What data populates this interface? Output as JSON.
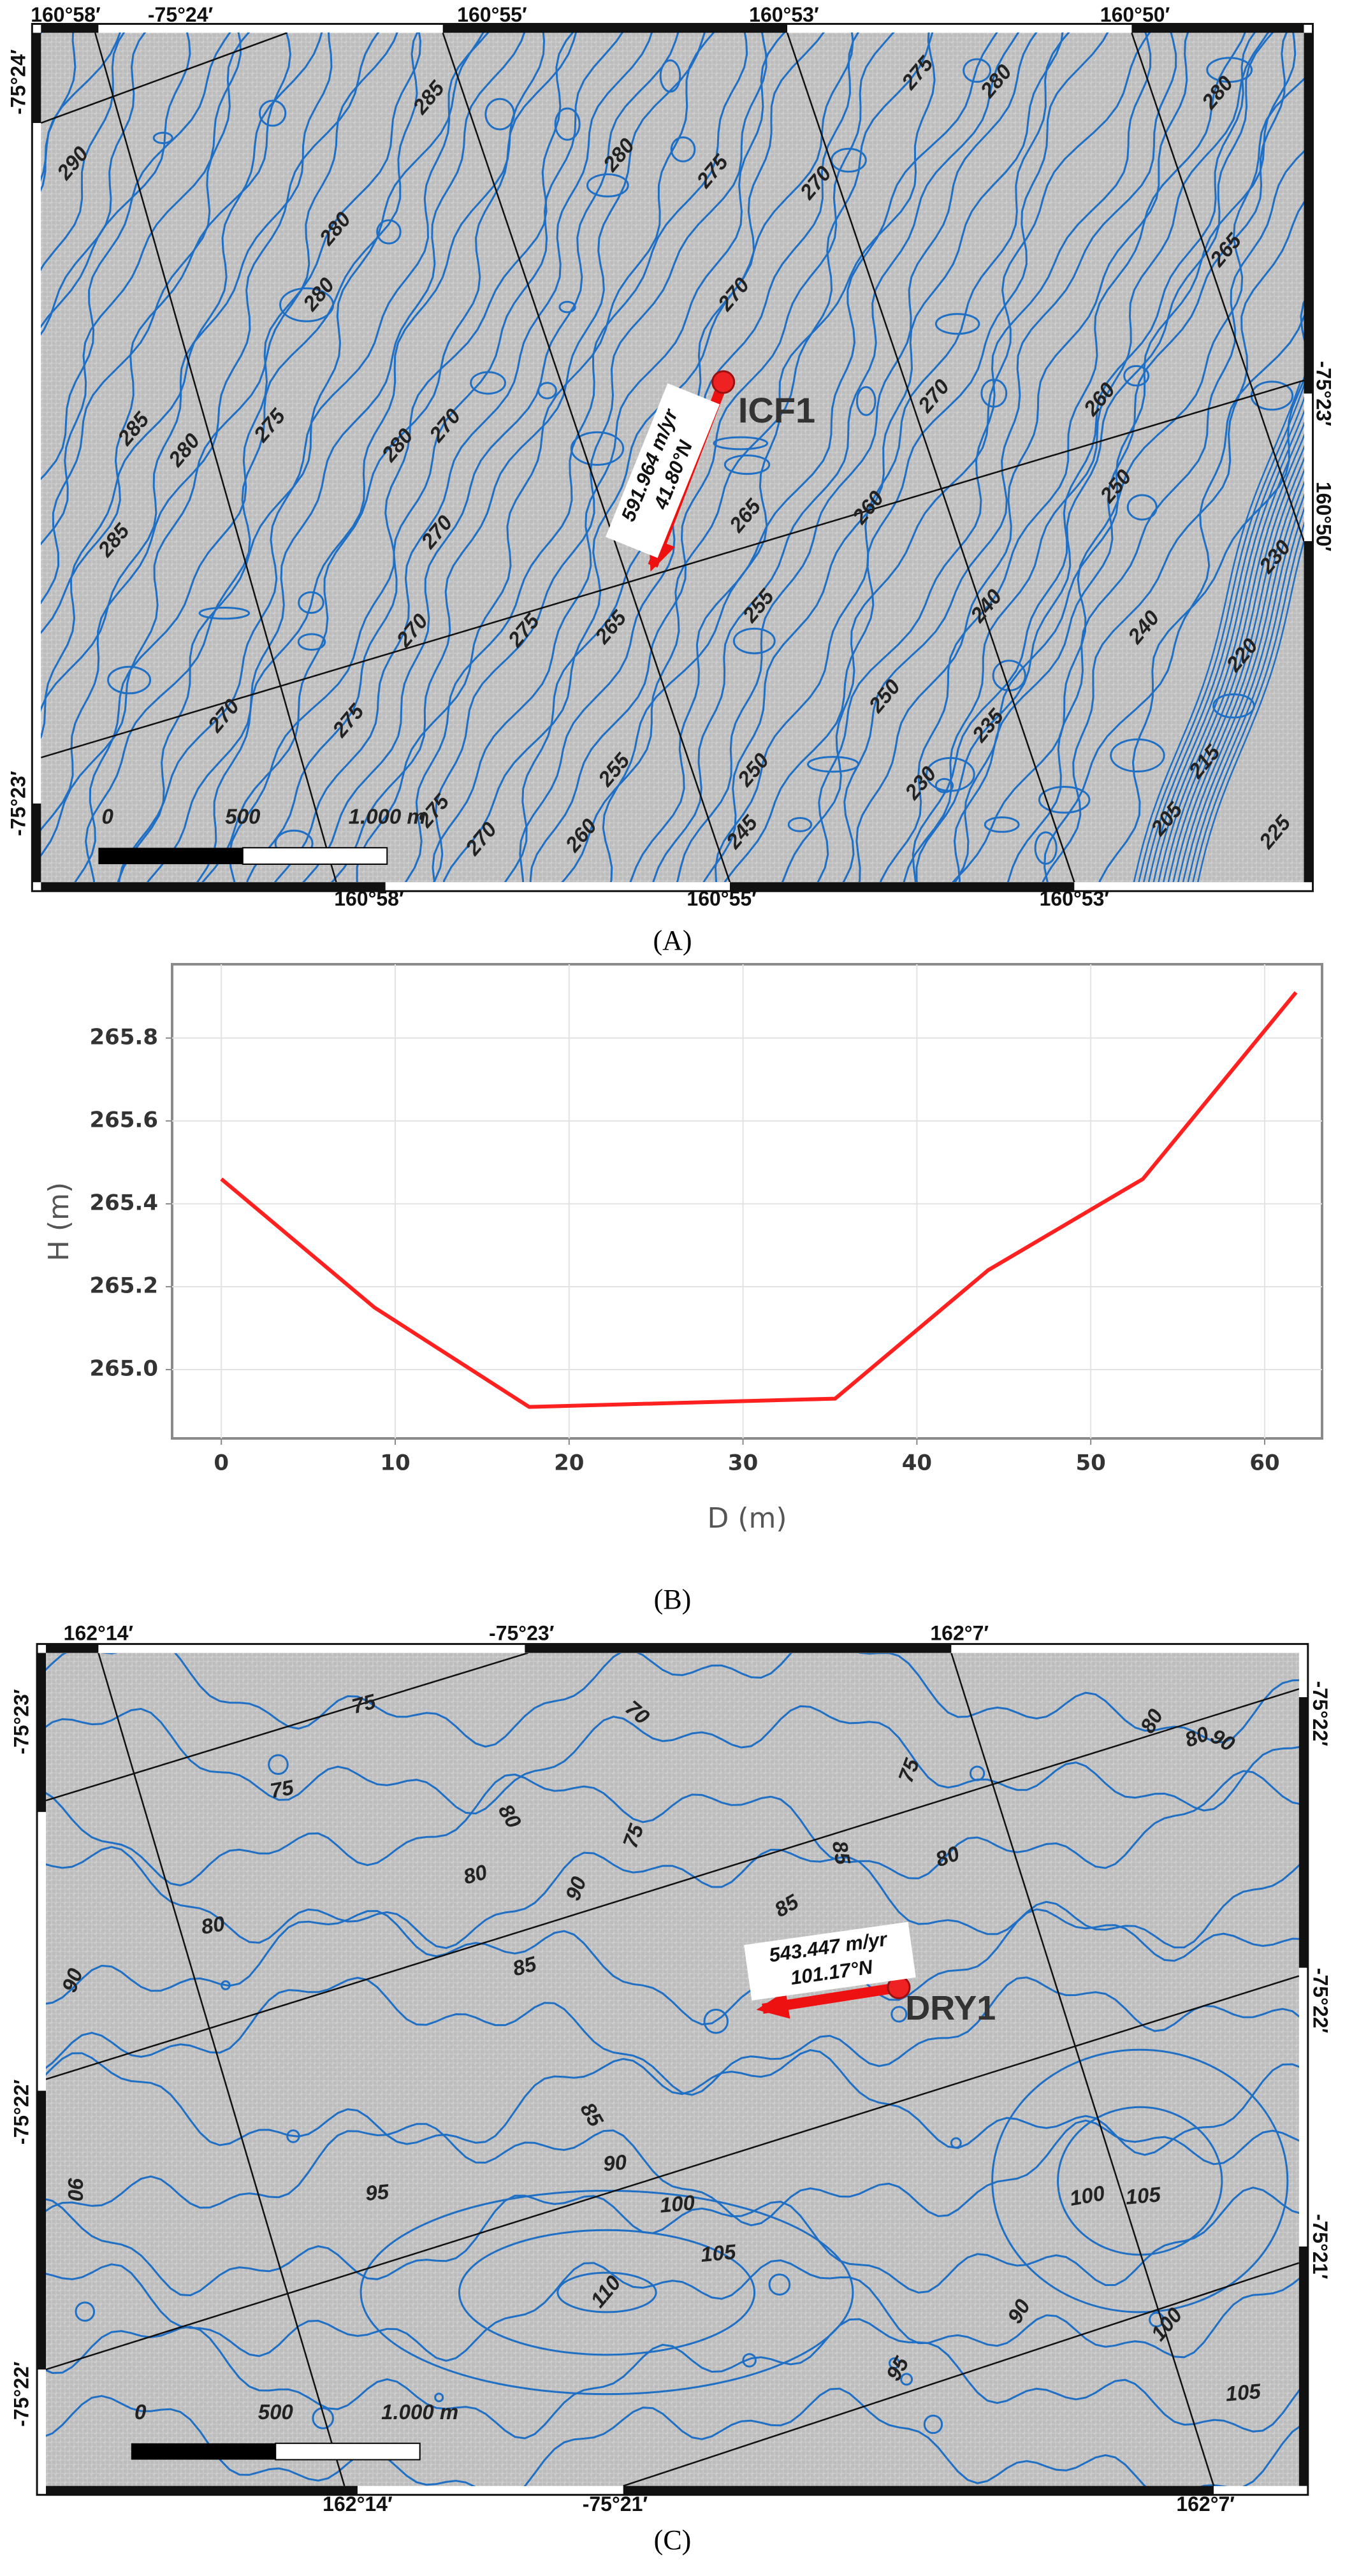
{
  "map_a": {
    "top_labels": [
      "160°58′",
      "-75°24′",
      "160°55′",
      "160°53′",
      "160°50′"
    ],
    "left_labels": [
      "-75°24′",
      "-75°23′"
    ],
    "right_labels": [
      "-75°23′",
      "160°50′"
    ],
    "bottom_labels": [
      "160°58′",
      "160°55′",
      "160°53′"
    ],
    "station": "ICF1",
    "velocity": "591.964 m/yr",
    "direction": "41.80°N",
    "scale_labels": [
      "0",
      "500",
      "1.000 m"
    ],
    "contour_labels": [
      "290",
      "280",
      "280",
      "285",
      "280",
      "285",
      "275",
      "280",
      "270",
      "270",
      "270",
      "270",
      "275",
      "275",
      "270",
      "275",
      "265",
      "260",
      "255",
      "285",
      "280",
      "275",
      "270",
      "265",
      "255",
      "250",
      "245",
      "260",
      "250",
      "230",
      "235",
      "240",
      "270",
      "275",
      "280",
      "270",
      "260",
      "250",
      "265",
      "280",
      "240",
      "205",
      "215",
      "225",
      "230",
      "220"
    ]
  },
  "captions": {
    "a": "(A)",
    "b": "(B)",
    "c": "(C)"
  },
  "chart_data": {
    "type": "line",
    "x_label": "D (m)",
    "y_label": "H (m)",
    "x": [
      0,
      8.8,
      17.7,
      26.5,
      35.3,
      44.1,
      53,
      61.8
    ],
    "values": [
      265.46,
      265.15,
      264.91,
      264.92,
      264.93,
      265.24,
      265.46,
      265.91
    ],
    "color": "#ff2020",
    "xlim": [
      -2.83,
      63.3
    ],
    "ylim": [
      264.834,
      265.978
    ],
    "xticks": [
      0,
      10,
      20,
      30,
      40,
      50,
      60
    ],
    "yticks": [
      {
        "value": 265.0,
        "label": "265.0"
      },
      {
        "value": 265.2,
        "label": "265.2"
      },
      {
        "value": 265.4,
        "label": "265.4"
      },
      {
        "value": 265.6,
        "label": "265.6"
      },
      {
        "value": 265.8,
        "label": "265.8"
      }
    ],
    "grid": true
  },
  "map_c": {
    "top_labels": [
      "162°14′",
      "-75°23′",
      "162°7′"
    ],
    "left_labels": [
      "-75°23′",
      "-75°22′",
      "-75°22′"
    ],
    "right_labels": [
      "-75°22′",
      "-75°22′",
      "-75°21′"
    ],
    "bottom_labels": [
      "162°14′",
      "-75°21′",
      "162°7′"
    ],
    "station": "DRY1",
    "velocity": "543.447 m/yr",
    "direction": "101.17°N",
    "scale_labels": [
      "0",
      "500",
      "1.000 m"
    ],
    "contour_labels": [
      "75",
      "70",
      "75",
      "80",
      "75",
      "75",
      "80",
      "90",
      "85",
      "80",
      "80",
      "85",
      "90",
      "85",
      "80",
      "80",
      "90",
      "85",
      "90",
      "95",
      "100",
      "105",
      "110",
      "95",
      "90",
      "100",
      "105",
      "100",
      "105",
      "90"
    ]
  }
}
